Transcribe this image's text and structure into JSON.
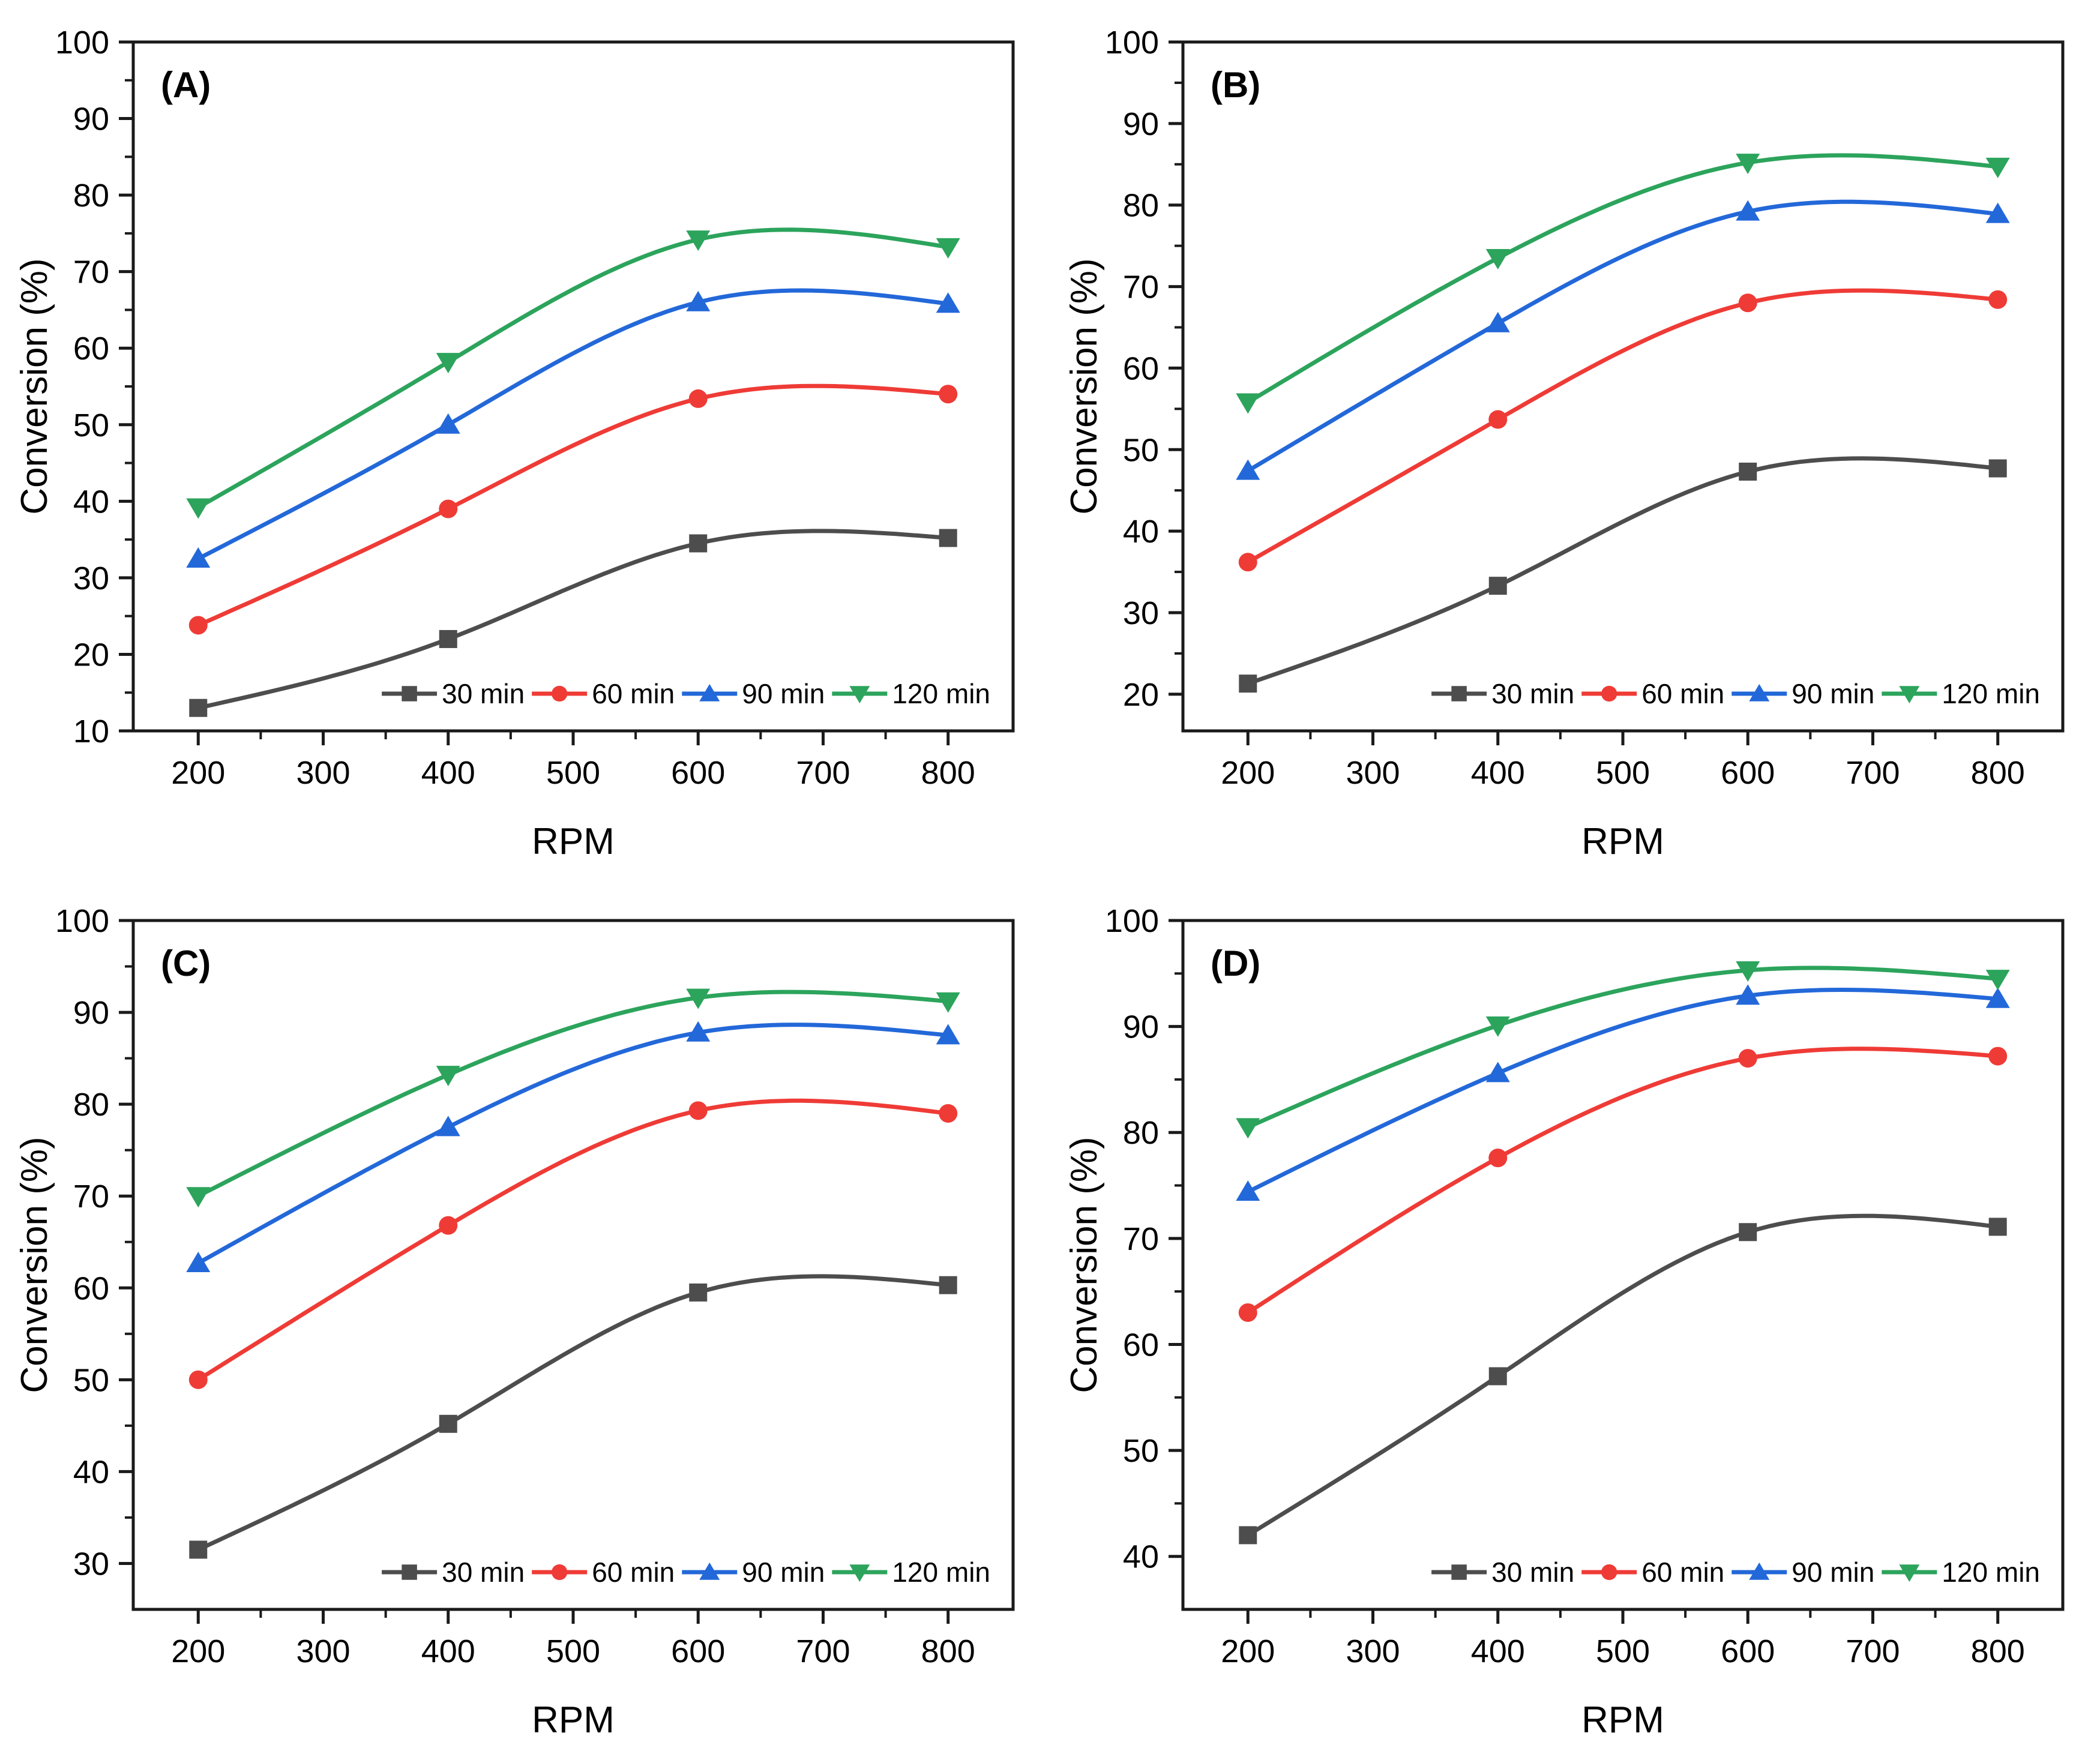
{
  "figure": {
    "background": "#ffffff",
    "axis_color": "#1a1a1a",
    "text_color": "#000000",
    "xlabel": "RPM",
    "ylabel": "Conversion (%)",
    "legend_labels": [
      "30 min",
      "60 min",
      "90 min",
      "120 min"
    ],
    "series_colors": [
      "#4d4d4d",
      "#ef3b36",
      "#2368d9",
      "#2ca45c"
    ],
    "series_markers": [
      "square",
      "circle",
      "triangle-up",
      "triangle-down"
    ]
  },
  "chart_data": [
    {
      "type": "line",
      "panel_label": "(A)",
      "xlabel": "RPM",
      "ylabel": "Conversion (%)",
      "x": [
        200,
        400,
        600,
        800
      ],
      "xlim": [
        148,
        852
      ],
      "ylim": [
        10,
        100
      ],
      "xticks": [
        200,
        300,
        400,
        500,
        600,
        700,
        800
      ],
      "yticks": [
        10,
        20,
        30,
        40,
        50,
        60,
        70,
        80,
        90,
        100
      ],
      "legend_position": "bottom-right-inside",
      "grid": false,
      "series": [
        {
          "name": "30 min",
          "marker": "square",
          "color": "#4d4d4d",
          "values": [
            13.0,
            22.0,
            34.5,
            35.2
          ]
        },
        {
          "name": "60 min",
          "marker": "circle",
          "color": "#ef3b36",
          "values": [
            23.8,
            39.0,
            53.4,
            54.0
          ]
        },
        {
          "name": "90 min",
          "marker": "triangle-up",
          "color": "#2368d9",
          "values": [
            32.5,
            50.0,
            66.0,
            65.8
          ]
        },
        {
          "name": "120 min",
          "marker": "triangle-down",
          "color": "#2ca45c",
          "values": [
            39.2,
            58.2,
            74.2,
            73.2
          ]
        }
      ]
    },
    {
      "type": "line",
      "panel_label": "(B)",
      "xlabel": "RPM",
      "ylabel": "Conversion (%)",
      "x": [
        200,
        400,
        600,
        800
      ],
      "xlim": [
        148,
        852
      ],
      "ylim": [
        15.5,
        100
      ],
      "xticks": [
        200,
        300,
        400,
        500,
        600,
        700,
        800
      ],
      "yticks": [
        20,
        30,
        40,
        50,
        60,
        70,
        80,
        90,
        100
      ],
      "legend_position": "bottom-right-inside",
      "grid": false,
      "series": [
        {
          "name": "30 min",
          "marker": "square",
          "color": "#4d4d4d",
          "values": [
            21.3,
            33.3,
            47.3,
            47.7
          ]
        },
        {
          "name": "60 min",
          "marker": "circle",
          "color": "#ef3b36",
          "values": [
            36.2,
            53.7,
            68.0,
            68.4
          ]
        },
        {
          "name": "90 min",
          "marker": "triangle-up",
          "color": "#2368d9",
          "values": [
            47.4,
            65.5,
            79.2,
            78.9
          ]
        },
        {
          "name": "120 min",
          "marker": "triangle-down",
          "color": "#2ca45c",
          "values": [
            55.8,
            73.5,
            85.2,
            84.7
          ]
        }
      ]
    },
    {
      "type": "line",
      "panel_label": "(C)",
      "xlabel": "RPM",
      "ylabel": "Conversion (%)",
      "x": [
        200,
        400,
        600,
        800
      ],
      "xlim": [
        148,
        852
      ],
      "ylim": [
        25,
        100
      ],
      "xticks": [
        200,
        300,
        400,
        500,
        600,
        700,
        800
      ],
      "yticks": [
        30,
        40,
        50,
        60,
        70,
        80,
        90,
        100
      ],
      "legend_position": "bottom-right-inside",
      "grid": false,
      "series": [
        {
          "name": "30 min",
          "marker": "square",
          "color": "#4d4d4d",
          "values": [
            31.5,
            45.2,
            59.5,
            60.3
          ]
        },
        {
          "name": "60 min",
          "marker": "circle",
          "color": "#ef3b36",
          "values": [
            50.0,
            66.8,
            79.3,
            79.0
          ]
        },
        {
          "name": "90 min",
          "marker": "triangle-up",
          "color": "#2368d9",
          "values": [
            62.7,
            77.5,
            87.8,
            87.5
          ]
        },
        {
          "name": "120 min",
          "marker": "triangle-down",
          "color": "#2ca45c",
          "values": [
            70.0,
            83.2,
            91.6,
            91.2
          ]
        }
      ]
    },
    {
      "type": "line",
      "panel_label": "(D)",
      "xlabel": "RPM",
      "ylabel": "Conversion (%)",
      "x": [
        200,
        400,
        600,
        800
      ],
      "xlim": [
        148,
        852
      ],
      "ylim": [
        35,
        100
      ],
      "xticks": [
        200,
        300,
        400,
        500,
        600,
        700,
        800
      ],
      "yticks": [
        40,
        50,
        60,
        70,
        80,
        90,
        100
      ],
      "legend_position": "bottom-right-inside",
      "grid": false,
      "series": [
        {
          "name": "30 min",
          "marker": "square",
          "color": "#4d4d4d",
          "values": [
            42.0,
            57.0,
            70.6,
            71.1
          ]
        },
        {
          "name": "60 min",
          "marker": "circle",
          "color": "#ef3b36",
          "values": [
            63.0,
            77.6,
            87.0,
            87.2
          ]
        },
        {
          "name": "90 min",
          "marker": "triangle-up",
          "color": "#2368d9",
          "values": [
            74.4,
            85.6,
            92.9,
            92.6
          ]
        },
        {
          "name": "120 min",
          "marker": "triangle-down",
          "color": "#2ca45c",
          "values": [
            80.5,
            90.1,
            95.3,
            94.5
          ]
        }
      ]
    }
  ]
}
